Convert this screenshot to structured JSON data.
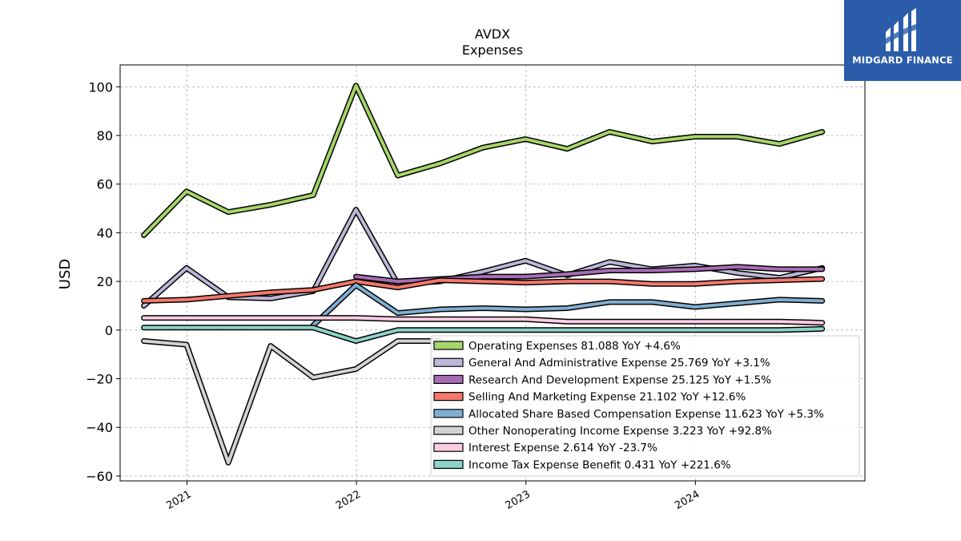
{
  "chart_data": {
    "type": "line",
    "title": "AVDX",
    "subtitle": "Expenses",
    "ylabel": "USD",
    "xlabel": "",
    "ylim": [
      -62,
      109
    ],
    "yticks": [
      -60,
      -40,
      -20,
      0,
      20,
      40,
      60,
      80,
      100
    ],
    "xlim": [
      "2020-08-10",
      "2024-12-31"
    ],
    "xticks": [
      {
        "date": "2021-01-01",
        "label": "2021"
      },
      {
        "date": "2022-01-01",
        "label": "2022"
      },
      {
        "date": "2023-01-01",
        "label": "2023"
      },
      {
        "date": "2024-01-01",
        "label": "2024"
      }
    ],
    "grid": true,
    "legend_position": "lower-right",
    "x": [
      "2020-09-30",
      "2020-12-31",
      "2021-03-31",
      "2021-06-30",
      "2021-09-30",
      "2021-12-31",
      "2022-03-31",
      "2022-06-30",
      "2022-09-30",
      "2022-12-31",
      "2023-03-31",
      "2023-06-30",
      "2023-09-30",
      "2023-12-31",
      "2024-03-31",
      "2024-06-30",
      "2024-09-30"
    ],
    "series": [
      {
        "name": "Operating Expenses",
        "legend": "Operating Expenses  81.088 YoY +4.6%",
        "color": "#a6d56a",
        "values": [
          39,
          57,
          48.5,
          51.5,
          55.5,
          100.5,
          63.5,
          68.5,
          75,
          78.5,
          74.5,
          81.5,
          77.5,
          79.5,
          79.5,
          76.5,
          81.5
        ]
      },
      {
        "name": "General And Administrative Expense",
        "legend": "General And Administrative Expense  25.769 YoY +3.1%",
        "color": "#bcb6d8",
        "values": [
          10,
          25.5,
          13.5,
          13,
          16,
          49.5,
          19,
          20,
          24,
          28.5,
          22.5,
          28,
          25,
          26.5,
          23.5,
          21.5,
          25.5
        ]
      },
      {
        "name": "Research And Development Expense",
        "legend": "Research And Development Expense  25.125 YoY +1.5%",
        "color": "#a86cb5",
        "values": [
          null,
          null,
          null,
          null,
          null,
          22,
          20,
          21,
          22,
          22,
          23,
          24.5,
          24.5,
          25,
          26,
          25,
          25
        ]
      },
      {
        "name": "Selling And Marketing Expense",
        "legend": "Selling And Marketing Expense  21.102 YoY +12.6%",
        "color": "#f4786b",
        "values": [
          12,
          12.5,
          14,
          15.5,
          16.5,
          20,
          17.5,
          20.5,
          20,
          19.5,
          20,
          20,
          19,
          19,
          20,
          20.5,
          21
        ]
      },
      {
        "name": "Allocated Share Based Compensation Expense",
        "legend": "Allocated Share Based Compensation Expense  11.623 YoY +5.3%",
        "color": "#80aed2",
        "values": [
          null,
          null,
          null,
          null,
          2,
          18.5,
          7,
          8.5,
          9,
          8.5,
          9,
          11.5,
          11.5,
          9.5,
          11,
          12.5,
          12
        ]
      },
      {
        "name": "Other Nonoperating Income Expense",
        "legend": "Other Nonoperating Income Expense  3.223 YoY +92.8%",
        "color": "#d3d3d3",
        "values": [
          -4.5,
          -6,
          -54.5,
          -6.5,
          -19.5,
          -16,
          -4.5,
          -4.5,
          null,
          null,
          null,
          null,
          null,
          null,
          null,
          null,
          null
        ]
      },
      {
        "name": "Interest Expense",
        "legend": "Interest Expense  2.614 YoY -23.7%",
        "color": "#fbcde2",
        "values": [
          5,
          5,
          5,
          5,
          5,
          5,
          4.5,
          4.5,
          4.5,
          4.5,
          3.5,
          3.5,
          3.5,
          3.5,
          3.5,
          3.5,
          3
        ]
      },
      {
        "name": "Income Tax Expense Benefit",
        "legend": "Income Tax Expense Benefit  0.431 YoY +221.6%",
        "color": "#8dd3c7",
        "values": [
          1,
          1,
          1,
          1,
          1,
          -4.5,
          0,
          0,
          0,
          0,
          0,
          0,
          0,
          0,
          0,
          0,
          0.5
        ]
      }
    ]
  },
  "logo": {
    "text": "MIDGARD FINANCE"
  }
}
